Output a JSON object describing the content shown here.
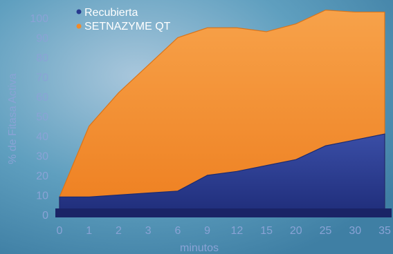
{
  "colors": {
    "background": "#5f9fbf",
    "series_recubierta": "#283a8f",
    "series_setnazyme": "#f28a28",
    "axis_text": "#8aa3d6",
    "legend_text": "#ffffff"
  },
  "chart_data": {
    "type": "area",
    "title": "",
    "xlabel": "minutos",
    "ylabel": "% de Fitasa Activa",
    "x": [
      "0",
      "1",
      "2",
      "3",
      "6",
      "9",
      "12",
      "15",
      "20",
      "25",
      "30",
      "35"
    ],
    "ylim": [
      0,
      105
    ],
    "yticks": [
      0,
      10,
      20,
      30,
      40,
      50,
      60,
      70,
      80,
      90,
      100
    ],
    "grid": false,
    "legend_position": "top-left",
    "series": [
      {
        "name": "Recubierta",
        "values": [
          9,
          9,
          10,
          11,
          12,
          20,
          22,
          25,
          28,
          35,
          38,
          41
        ],
        "color": "#283a8f"
      },
      {
        "name": "SETNAZYME QT",
        "values": [
          9,
          45,
          62,
          76,
          90,
          95,
          95,
          93,
          97,
          104,
          103,
          103
        ],
        "color": "#f28a28"
      }
    ]
  }
}
